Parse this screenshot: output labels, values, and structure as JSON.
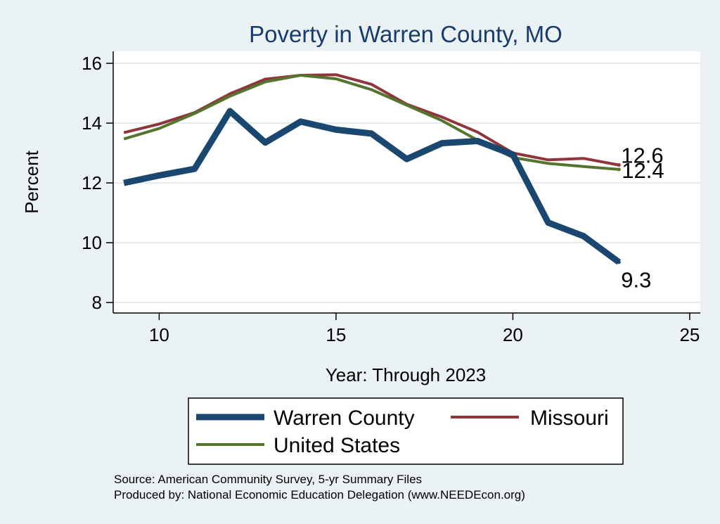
{
  "chart_data": {
    "type": "line",
    "title": "Poverty in Warren County, MO",
    "xlabel": "Year: Through 2023",
    "ylabel": "Percent",
    "xlim": [
      8.7,
      25.3
    ],
    "ylim": [
      7.65,
      16.4
    ],
    "xticks": [
      10,
      15,
      20,
      25
    ],
    "yticks": [
      8,
      10,
      12,
      14,
      16
    ],
    "grid": true,
    "legend_position": "bottom",
    "x": [
      9,
      10,
      11,
      12,
      13,
      14,
      15,
      16,
      17,
      18,
      19,
      20,
      21,
      22,
      23
    ],
    "series": [
      {
        "name": "Warren County",
        "color": "#1a476f",
        "values": [
          12.0,
          12.25,
          12.47,
          14.4,
          13.35,
          14.05,
          13.78,
          13.65,
          12.8,
          13.33,
          13.4,
          12.95,
          10.67,
          10.22,
          9.35
        ],
        "end_label": "9.3"
      },
      {
        "name": "Missouri",
        "color": "#90353b",
        "values": [
          13.68,
          13.97,
          14.35,
          14.98,
          15.47,
          15.6,
          15.62,
          15.3,
          14.63,
          14.2,
          13.7,
          13.0,
          12.77,
          12.82,
          12.6
        ],
        "end_label": "12.6"
      },
      {
        "name": "United States",
        "color": "#55752f",
        "values": [
          13.47,
          13.82,
          14.32,
          14.9,
          15.38,
          15.6,
          15.48,
          15.12,
          14.6,
          14.08,
          13.43,
          12.85,
          12.65,
          12.55,
          12.45
        ],
        "end_label": "12.4"
      }
    ]
  },
  "notes": {
    "source": "Source: American Community Survey, 5-yr Summary Files",
    "produced_by": "Produced by: National Economic Education Delegation (www.NEEDEcon.org)"
  }
}
